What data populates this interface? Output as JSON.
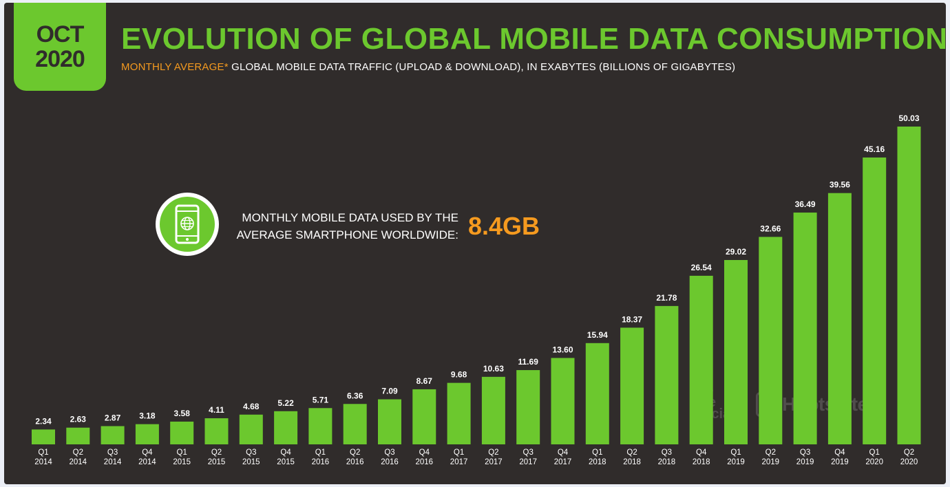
{
  "header": {
    "date_month": "OCT",
    "date_year": "2020",
    "title": "EVOLUTION OF GLOBAL MOBILE DATA CONSUMPTION",
    "subtitle_highlight": "MONTHLY AVERAGE*",
    "subtitle_rest": " GLOBAL MOBILE DATA TRAFFIC (UPLOAD & DOWNLOAD), IN EXABYTES (BILLIONS OF GIGABYTES)"
  },
  "callout": {
    "icon": "smartphone-globe-icon",
    "line1": "MONTHLY MOBILE DATA USED BY THE",
    "line2": "AVERAGE SMARTPHONE WORLDWIDE:",
    "value": "8.4GB"
  },
  "watermarks": {
    "social_1": "we",
    "social_2": "are",
    "social_3": "social",
    "hootsuite": "Hootsuite"
  },
  "colors": {
    "background": "#302c2b",
    "accent_green": "#6cc82e",
    "accent_orange": "#f59a1f",
    "text": "#ffffff"
  },
  "chart_data": {
    "type": "bar",
    "categories": [
      [
        "Q1",
        "2014"
      ],
      [
        "Q2",
        "2014"
      ],
      [
        "Q3",
        "2014"
      ],
      [
        "Q4",
        "2014"
      ],
      [
        "Q1",
        "2015"
      ],
      [
        "Q2",
        "2015"
      ],
      [
        "Q3",
        "2015"
      ],
      [
        "Q4",
        "2015"
      ],
      [
        "Q1",
        "2016"
      ],
      [
        "Q2",
        "2016"
      ],
      [
        "Q3",
        "2016"
      ],
      [
        "Q4",
        "2016"
      ],
      [
        "Q1",
        "2017"
      ],
      [
        "Q2",
        "2017"
      ],
      [
        "Q3",
        "2017"
      ],
      [
        "Q4",
        "2017"
      ],
      [
        "Q1",
        "2018"
      ],
      [
        "Q2",
        "2018"
      ],
      [
        "Q3",
        "2018"
      ],
      [
        "Q4",
        "2018"
      ],
      [
        "Q1",
        "2019"
      ],
      [
        "Q2",
        "2019"
      ],
      [
        "Q3",
        "2019"
      ],
      [
        "Q4",
        "2019"
      ],
      [
        "Q1",
        "2020"
      ],
      [
        "Q2",
        "2020"
      ]
    ],
    "values": [
      2.34,
      2.63,
      2.87,
      3.18,
      3.58,
      4.11,
      4.68,
      5.22,
      5.71,
      6.36,
      7.09,
      8.67,
      9.68,
      10.63,
      11.69,
      13.6,
      15.94,
      18.37,
      21.78,
      26.54,
      29.02,
      32.66,
      36.49,
      39.56,
      45.16,
      50.03
    ],
    "value_labels": [
      "2.34",
      "2.63",
      "2.87",
      "3.18",
      "3.58",
      "4.11",
      "4.68",
      "5.22",
      "5.71",
      "6.36",
      "7.09",
      "8.67",
      "9.68",
      "10.63",
      "11.69",
      "13.60",
      "15.94",
      "18.37",
      "21.78",
      "26.54",
      "29.02",
      "32.66",
      "36.49",
      "39.56",
      "45.16",
      "50.03"
    ],
    "ylim": [
      0,
      50.03
    ],
    "grid": false,
    "legend": "none",
    "bar_color": "#6cc82e"
  }
}
